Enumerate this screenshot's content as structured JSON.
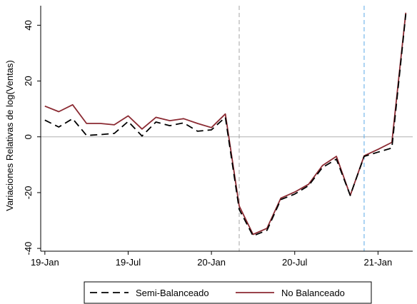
{
  "chart_data": {
    "type": "line",
    "xlabel": "",
    "ylabel": "Variaciones Relativas de log(Ventas)",
    "x_ticks": [
      "19-Jan",
      "19-Jul",
      "20-Jan",
      "20-Jul",
      "21-Jan"
    ],
    "x_tick_months": [
      0,
      6,
      12,
      18,
      24
    ],
    "x_range_months": [
      -0.3,
      26.5
    ],
    "y_ticks": [
      -40,
      -20,
      0,
      20,
      40
    ],
    "ylim": [
      -41,
      47
    ],
    "grid": false,
    "reference_line_y": 0,
    "vertical_markers": [
      {
        "month": 14,
        "color": "#a6a6a6",
        "style": "dashed"
      },
      {
        "month": 23,
        "color": "#5aa9e6",
        "style": "dashed"
      }
    ],
    "x_months": [
      0,
      1,
      2,
      3,
      4,
      5,
      6,
      7,
      8,
      9,
      10,
      11,
      12,
      13,
      14,
      15,
      16,
      17,
      18,
      19,
      20,
      21,
      22,
      23,
      24,
      25,
      26
    ],
    "series": [
      {
        "name": "Semi-Balanceado",
        "color": "#000000",
        "dash": "10,6",
        "values": [
          6,
          3.5,
          6.5,
          0.5,
          0.8,
          1.2,
          5.5,
          0.3,
          5.3,
          4,
          5,
          2,
          2.5,
          7,
          -26,
          -35.5,
          -33.5,
          -22.5,
          -20.5,
          -17.5,
          -11,
          -8,
          -21,
          -7,
          -5.5,
          -4,
          44
        ]
      },
      {
        "name": "No Balanceado",
        "color": "#8b2a32",
        "dash": "",
        "values": [
          11,
          9,
          11.5,
          4.8,
          4.8,
          4.3,
          7.5,
          2.8,
          7,
          5.8,
          6.5,
          4.8,
          3.3,
          8.2,
          -24.8,
          -35,
          -32.8,
          -22,
          -19.8,
          -17,
          -10.3,
          -7,
          -21,
          -6.8,
          -4.5,
          -2,
          44.5
        ]
      }
    ],
    "legend_position": "bottom-center"
  }
}
